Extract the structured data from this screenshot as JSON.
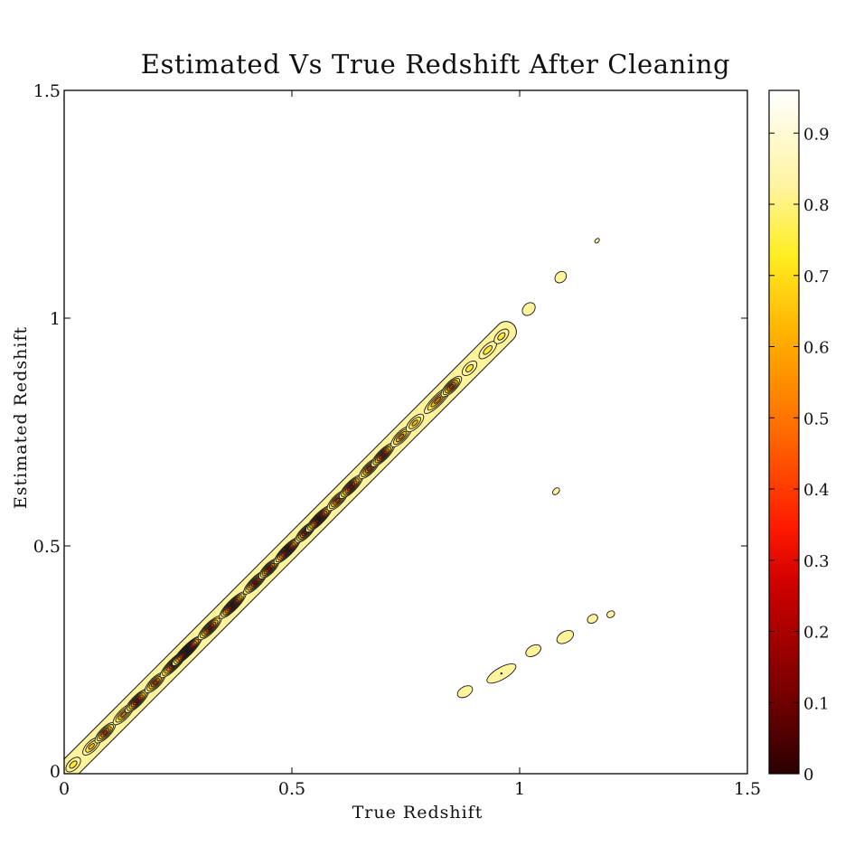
{
  "chart_data": {
    "type": "contour",
    "title": "Estimated Vs True Redshift After Cleaning",
    "xlabel": "True Redshift",
    "ylabel": "Estimated Redshift",
    "xlim": [
      0,
      1.5
    ],
    "ylim": [
      0,
      1.5
    ],
    "xticks": [
      "0",
      "0.5",
      "1",
      "1.5"
    ],
    "yticks": [
      "0",
      "0.5",
      "1",
      "1.5"
    ],
    "colorbar": {
      "range": [
        0,
        0.96
      ],
      "ticks": [
        "0",
        "0.1",
        "0.2",
        "0.3",
        "0.4",
        "0.5",
        "0.6",
        "0.7",
        "0.8",
        "0.9"
      ],
      "colormap": "hot",
      "colors": [
        "#2e0000",
        "#800000",
        "#d00000",
        "#ff2a00",
        "#ff7a00",
        "#ffb800",
        "#ffe830",
        "#fff39c",
        "#fffbe6",
        "#ffffff"
      ]
    },
    "features": [
      {
        "name": "main-ridge",
        "x_start": 0.0,
        "y_start": 0.0,
        "x_end": 0.97,
        "y_end": 0.97,
        "note": "density concentrated along y = x"
      },
      {
        "name": "secondary-ridge",
        "points": [
          [
            0.88,
            0.18
          ],
          [
            0.96,
            0.22
          ],
          [
            1.03,
            0.27
          ],
          [
            1.1,
            0.3
          ],
          [
            1.16,
            0.34
          ],
          [
            1.2,
            0.35
          ]
        ]
      },
      {
        "name": "isolated-blobs",
        "points": [
          [
            1.02,
            1.02
          ],
          [
            1.09,
            1.09
          ],
          [
            1.17,
            1.17
          ],
          [
            1.08,
            0.62
          ]
        ]
      }
    ],
    "grid": false
  }
}
